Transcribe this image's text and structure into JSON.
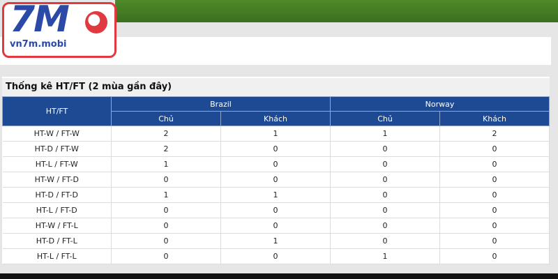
{
  "logo": {
    "brand": "7M",
    "domain": "vn7m.mobi"
  },
  "table": {
    "title": "Thống kê HT/FT (2 mùa gần đây)",
    "corner": "HT/FT",
    "groups": [
      "Brazil",
      "Norway"
    ],
    "subheaders": [
      "Chủ",
      "Khách",
      "Chủ",
      "Khách"
    ],
    "rows": [
      [
        "HT-W / FT-W",
        "2",
        "1",
        "1",
        "2"
      ],
      [
        "HT-D / FT-W",
        "2",
        "0",
        "0",
        "0"
      ],
      [
        "HT-L / FT-W",
        "1",
        "0",
        "0",
        "0"
      ],
      [
        "HT-W / FT-D",
        "0",
        "0",
        "0",
        "0"
      ],
      [
        "HT-D / FT-D",
        "1",
        "1",
        "0",
        "0"
      ],
      [
        "HT-L / FT-D",
        "0",
        "0",
        "0",
        "0"
      ],
      [
        "HT-W / FT-L",
        "0",
        "0",
        "0",
        "0"
      ],
      [
        "HT-D / FT-L",
        "0",
        "1",
        "0",
        "0"
      ],
      [
        "HT-L / FT-L",
        "0",
        "0",
        "1",
        "0"
      ]
    ]
  }
}
